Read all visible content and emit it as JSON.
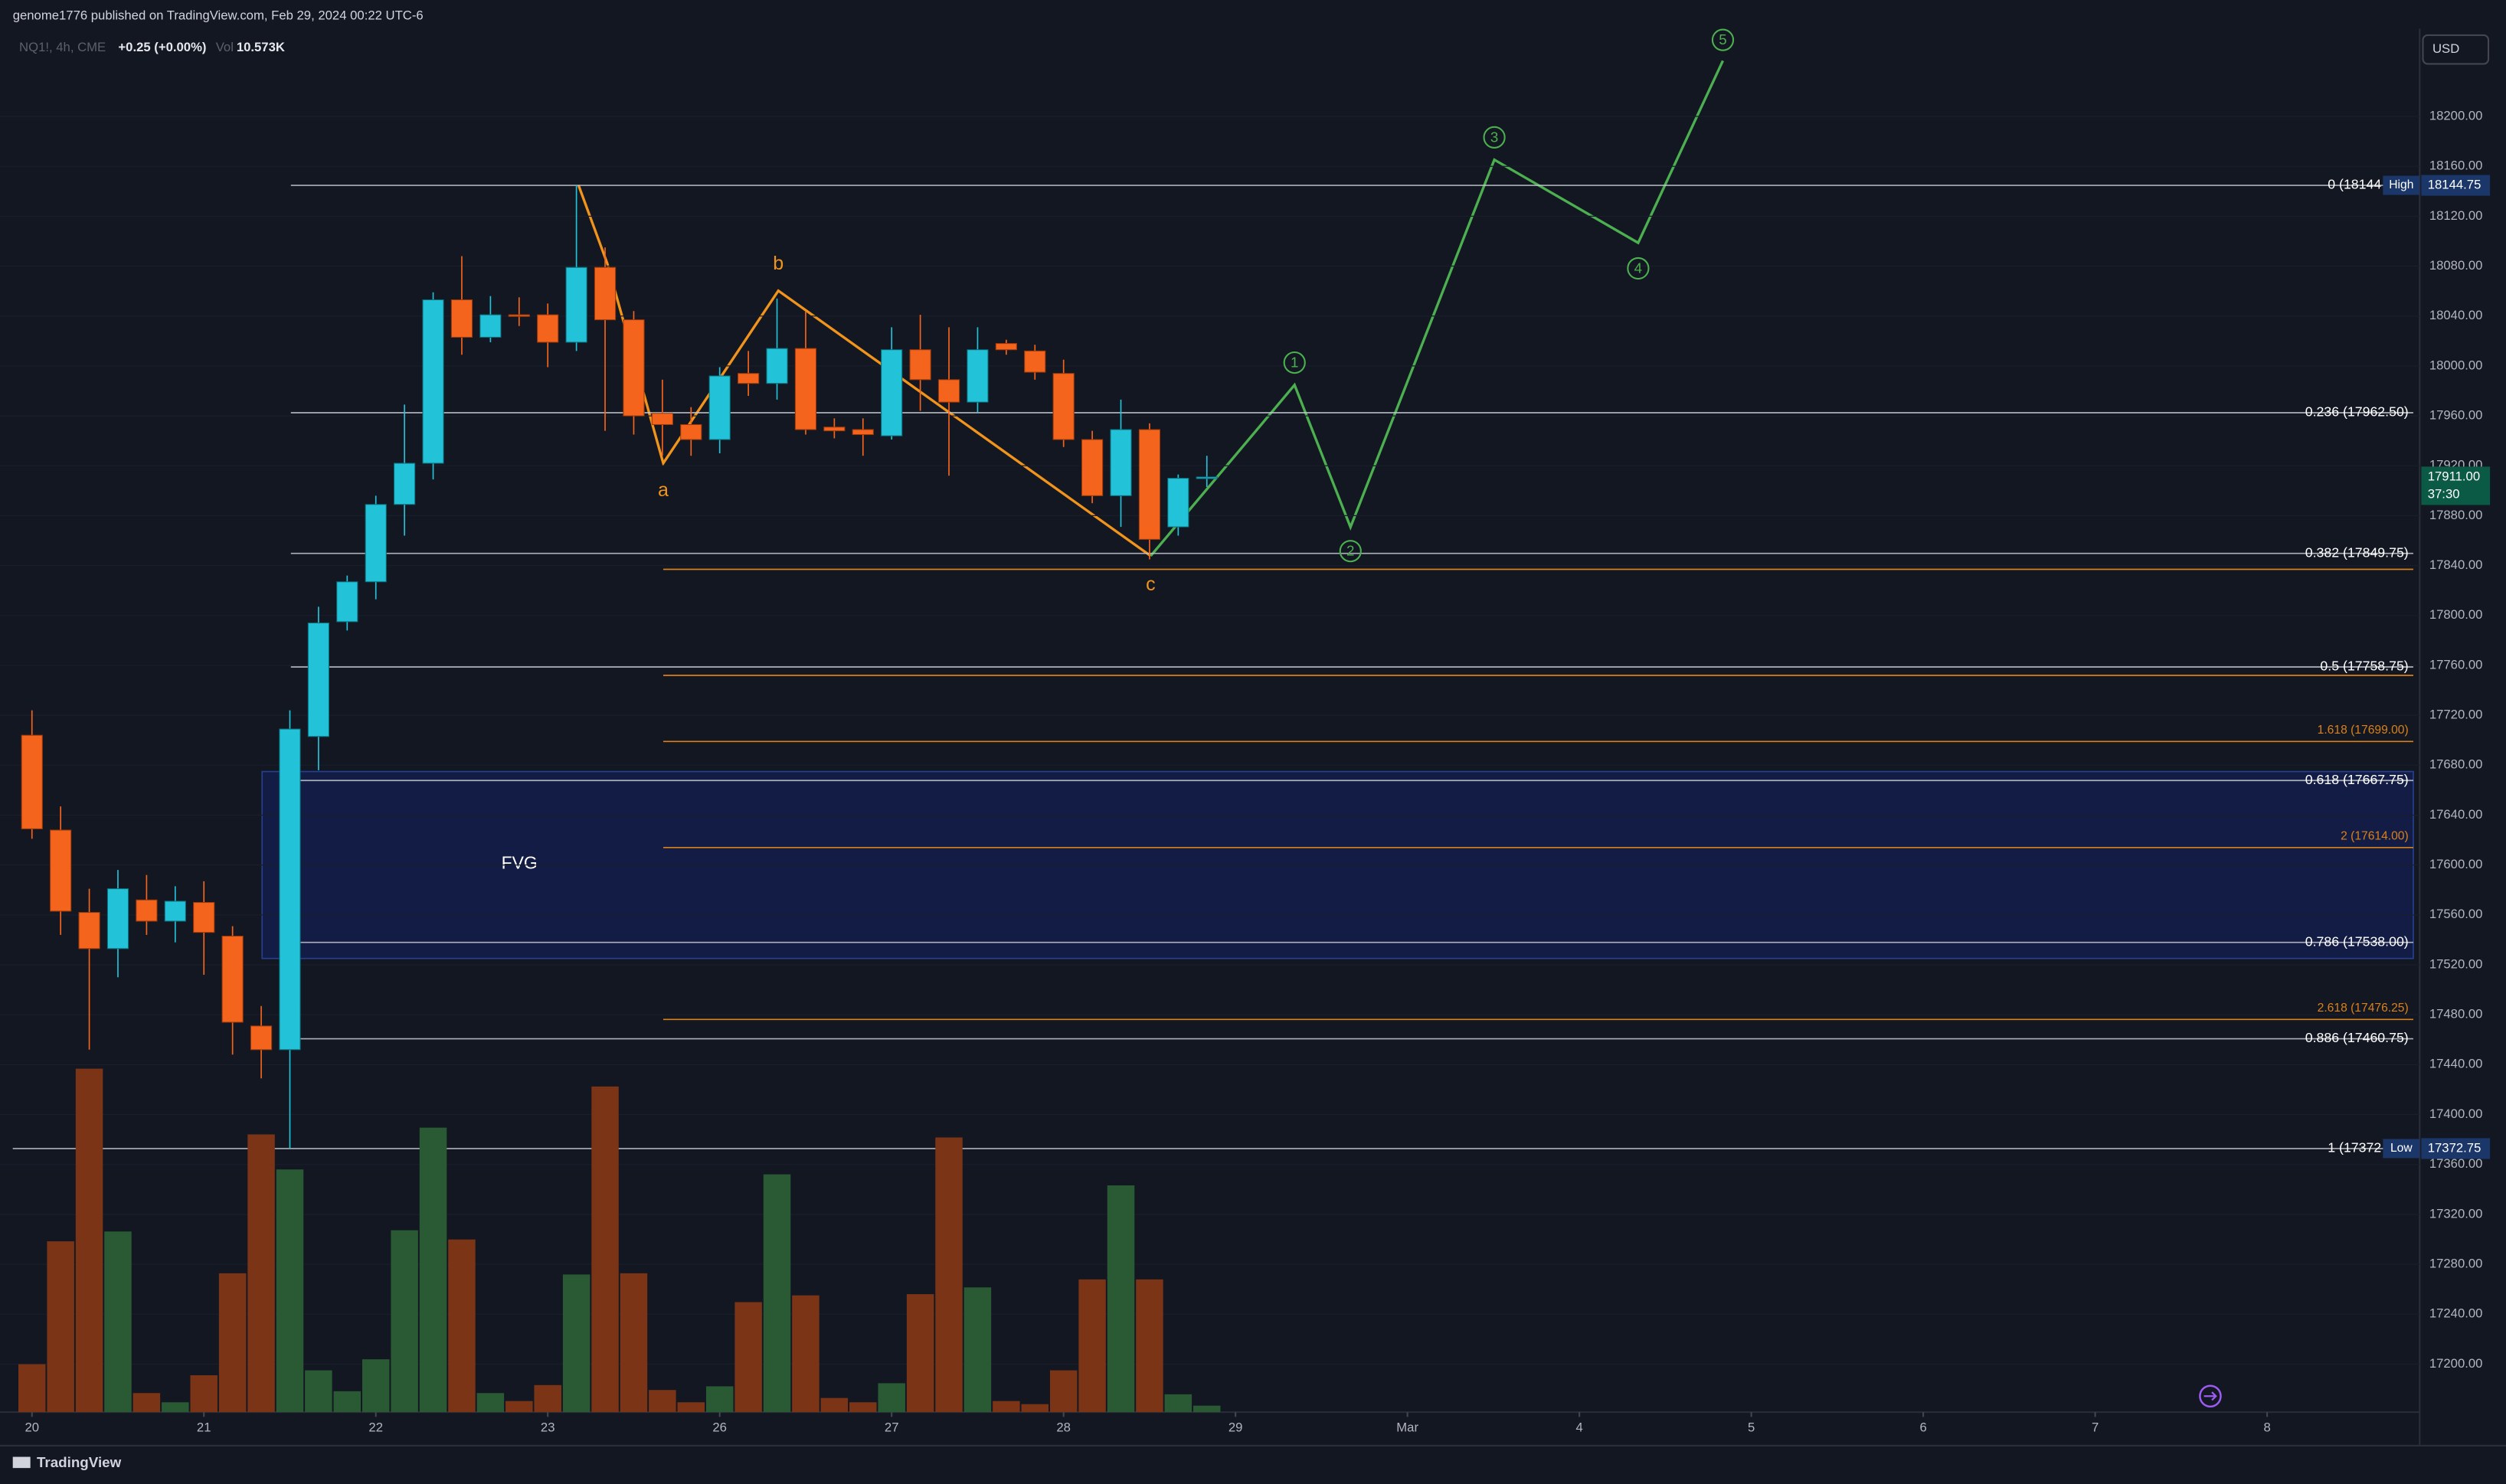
{
  "chart_data": {
    "type": "candlestick",
    "header": "genome1776 published on TradingView.com, Feb 29, 2024 00:22 UTC-6",
    "symbol": "NQ1!, 4h, CME",
    "change": "+0.25 (+0.00%)",
    "vol_label": "Vol",
    "vol_value": "10.573K",
    "currency": "USD",
    "footer": "TradingView",
    "annotation": "FVG",
    "wave_labels": [
      "a",
      "b",
      "c",
      "1",
      "2",
      "3",
      "4",
      "5"
    ],
    "colors": {
      "up": "#22c3d9",
      "down": "#f5641c",
      "up_volume": "#295a34",
      "down_volume": "#7c3416",
      "fib": "#c9ccd4",
      "extension": "#d9811c"
    },
    "candles": {
      "open": [
        17704,
        17628,
        17562,
        17533,
        17572,
        17555,
        17570,
        17543,
        17471,
        17452,
        17703,
        17795,
        17827,
        17889,
        17922,
        18053,
        18023,
        18041,
        18041,
        18019,
        18079,
        18037,
        17962,
        17953,
        17941,
        17994,
        17986,
        18014,
        17951,
        17949,
        17944,
        18013,
        17989,
        17971,
        18018,
        18012,
        17994,
        17941,
        17896,
        17949,
        17871,
        17910
      ],
      "high": [
        17724,
        17647,
        17581,
        17596,
        17592,
        17583,
        17587,
        17551,
        17487,
        17724,
        17807,
        17832,
        17896,
        17969,
        18059,
        18088,
        18056,
        18055,
        18050,
        18144.75,
        18095,
        18044,
        17989,
        17967,
        17999,
        18012,
        18054,
        18044,
        17958,
        17958,
        18031,
        18041,
        18031,
        18031,
        18021,
        18017,
        18005,
        17948,
        17973,
        17954,
        17913,
        17928
      ],
      "low": [
        17621,
        17544,
        17452,
        17510,
        17544,
        17538,
        17512,
        17448,
        17429,
        17372.75,
        17676,
        17788,
        17813,
        17864,
        17909,
        18009,
        18019,
        18032,
        17999,
        18012,
        17948,
        17945,
        17928,
        17928,
        17930,
        17976,
        17973,
        17945,
        17942,
        17928,
        17941,
        17964,
        17912,
        17963,
        18009,
        17989,
        17935,
        17890,
        17871,
        17845,
        17864,
        17903
      ],
      "close": [
        17629,
        17563,
        17533,
        17581,
        17555,
        17571,
        17546,
        17474,
        17452,
        17709,
        17794,
        17827,
        17889,
        17922,
        18053,
        18023,
        18041,
        18040,
        18019,
        18079,
        18037,
        17960,
        17953,
        17941,
        17992,
        17986,
        18014,
        17949,
        17948,
        17945,
        18013,
        17989,
        17971,
        18013,
        18013,
        17995,
        17941,
        17896,
        17949,
        17861,
        17910,
        17911
      ]
    },
    "volume": [
      78,
      278,
      559,
      294,
      31,
      16,
      60,
      226,
      452,
      395,
      68,
      34,
      86,
      296,
      463,
      281,
      31,
      18,
      44,
      224,
      530,
      226,
      36,
      16,
      42,
      179,
      387,
      190,
      23,
      16,
      47,
      192,
      447,
      203,
      18,
      13,
      68,
      216,
      369,
      216,
      29,
      10.573
    ],
    "ylim": [
      17161.5,
      18267.7
    ],
    "yticks": [
      {
        "value": 17200,
        "label": "17200.00"
      },
      {
        "value": 17240,
        "label": "17240.00"
      },
      {
        "value": 17280,
        "label": "17280.00"
      },
      {
        "value": 17320,
        "label": "17320.00"
      },
      {
        "value": 17360,
        "label": "17360.00"
      },
      {
        "value": 17400,
        "label": "17400.00"
      },
      {
        "value": 17440,
        "label": "17440.00"
      },
      {
        "value": 17480,
        "label": "17480.00"
      },
      {
        "value": 17520,
        "label": "17520.00"
      },
      {
        "value": 17560,
        "label": "17560.00"
      },
      {
        "value": 17600,
        "label": "17600.00"
      },
      {
        "value": 17640,
        "label": "17640.00"
      },
      {
        "value": 17680,
        "label": "17680.00"
      },
      {
        "value": 17720,
        "label": "17720.00"
      },
      {
        "value": 17760,
        "label": "17760.00"
      },
      {
        "value": 17800,
        "label": "17800.00"
      },
      {
        "value": 17840,
        "label": "17840.00"
      },
      {
        "value": 17880,
        "label": "17880.00"
      },
      {
        "value": 17920,
        "label": "17920.00"
      },
      {
        "value": 17960,
        "label": "17960.00"
      },
      {
        "value": 18000,
        "label": "18000.00"
      },
      {
        "value": 18040,
        "label": "18040.00"
      },
      {
        "value": 18080,
        "label": "18080.00"
      },
      {
        "value": 18120,
        "label": "18120.00"
      },
      {
        "value": 18160,
        "label": "18160.00"
      },
      {
        "value": 18200,
        "label": "18200.00"
      }
    ],
    "xticks": [
      {
        "value": 0,
        "label": "20"
      },
      {
        "value": 6,
        "label": "21"
      },
      {
        "value": 12,
        "label": "22"
      },
      {
        "value": 18,
        "label": "23"
      },
      {
        "value": 24,
        "label": "26"
      },
      {
        "value": 30,
        "label": "27"
      },
      {
        "value": 36,
        "label": "28"
      },
      {
        "value": 42,
        "label": "29"
      },
      {
        "value": 48,
        "label": "Mar"
      },
      {
        "value": 54,
        "label": "4"
      },
      {
        "value": 60,
        "label": "5"
      },
      {
        "value": 66,
        "label": "6"
      },
      {
        "value": 72,
        "label": "7"
      },
      {
        "value": 78,
        "label": "8"
      }
    ],
    "fib_levels": [
      {
        "label": "0 (18144",
        "price": 18144.75
      },
      {
        "label": "0.236 (17962.50)",
        "price": 17962.5
      },
      {
        "label": "0.382 (17849.75)",
        "price": 17849.75
      },
      {
        "label": "0.5 (17758.75)",
        "price": 17758.75
      },
      {
        "label": "0.618 (17667.75)",
        "price": 17667.75
      },
      {
        "label": "0.786 (17538.00)",
        "price": 17538
      },
      {
        "label": "0.886 (17460.75)",
        "price": 17460.75
      },
      {
        "label": "1 (17372",
        "price": 17372.75
      }
    ],
    "extension_levels": [
      {
        "price": 17837
      },
      {
        "price": 17752
      },
      {
        "label": "1.618 (17699.00)",
        "price": 17699
      },
      {
        "label": "2 (17614.00)",
        "price": 17614
      },
      {
        "label": "2.618 (17476.25)",
        "price": 17476.25
      }
    ],
    "price_tags": [
      {
        "label": "18144.75",
        "price": 18144.75,
        "badge": "High"
      },
      {
        "label": "17911.00",
        "price": 17911,
        "countdown": "37:30"
      },
      {
        "label": "17372.75",
        "price": 17372.75,
        "badge": "Low"
      }
    ]
  }
}
